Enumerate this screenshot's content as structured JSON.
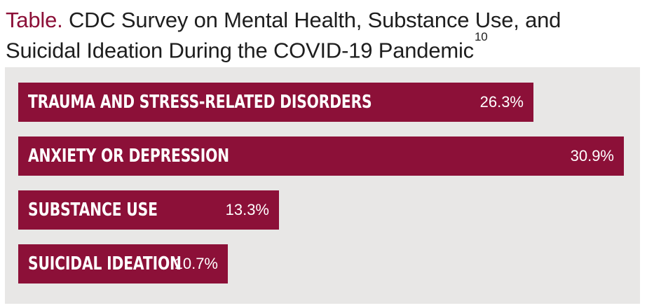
{
  "title": {
    "label": "Table.",
    "text": "CDC Survey on Mental Health, Substance Use, and Suicidal Ideation During the COVID-19 Pandemic",
    "reference": "10"
  },
  "chart_data": {
    "type": "bar",
    "orientation": "horizontal",
    "title": "Table. CDC Survey on Mental Health, Substance Use, and Suicidal Ideation During the COVID-19 Pandemic",
    "categories": [
      "TRAUMA AND STRESS-RELATED DISORDERS",
      "ANXIETY OR DEPRESSION",
      "SUBSTANCE USE",
      "SUICIDAL IDEATION"
    ],
    "values": [
      26.3,
      30.9,
      13.3,
      10.7
    ],
    "value_labels": [
      "26.3%",
      "30.9%",
      "13.3%",
      "10.7%"
    ],
    "xlim": [
      0,
      30.9
    ],
    "bar_color": "#8c1038",
    "background_color": "#e8e7e6",
    "grid": false,
    "legend": "none"
  }
}
